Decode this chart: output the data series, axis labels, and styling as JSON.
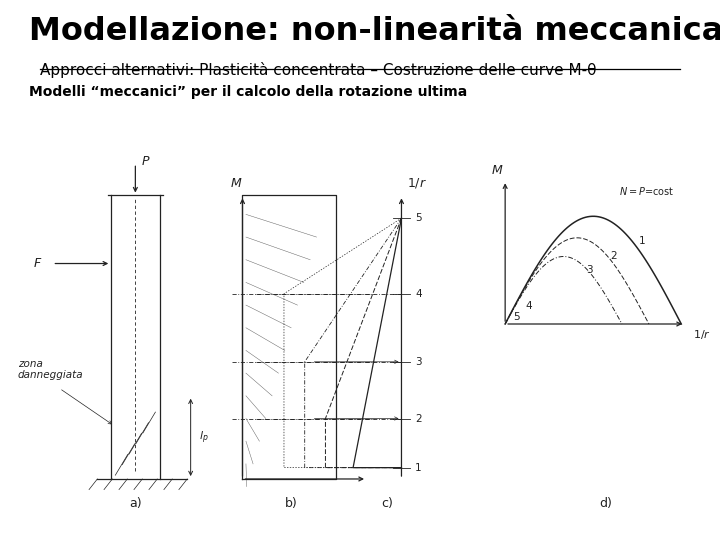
{
  "title": "Modellazione: non-linearità meccanica",
  "subtitle": "Approcci alternativi: Plasticità concentrata – Costruzione delle curve M-θ",
  "body_text": "Modelli “meccanici” per il calcolo della rotazione ultima",
  "bg_color": "#ffffff",
  "panel_bg": "#cccccc",
  "col": "#222222",
  "lw": 0.9,
  "title_fs": 23,
  "sub_fs": 11,
  "body_fs": 10
}
